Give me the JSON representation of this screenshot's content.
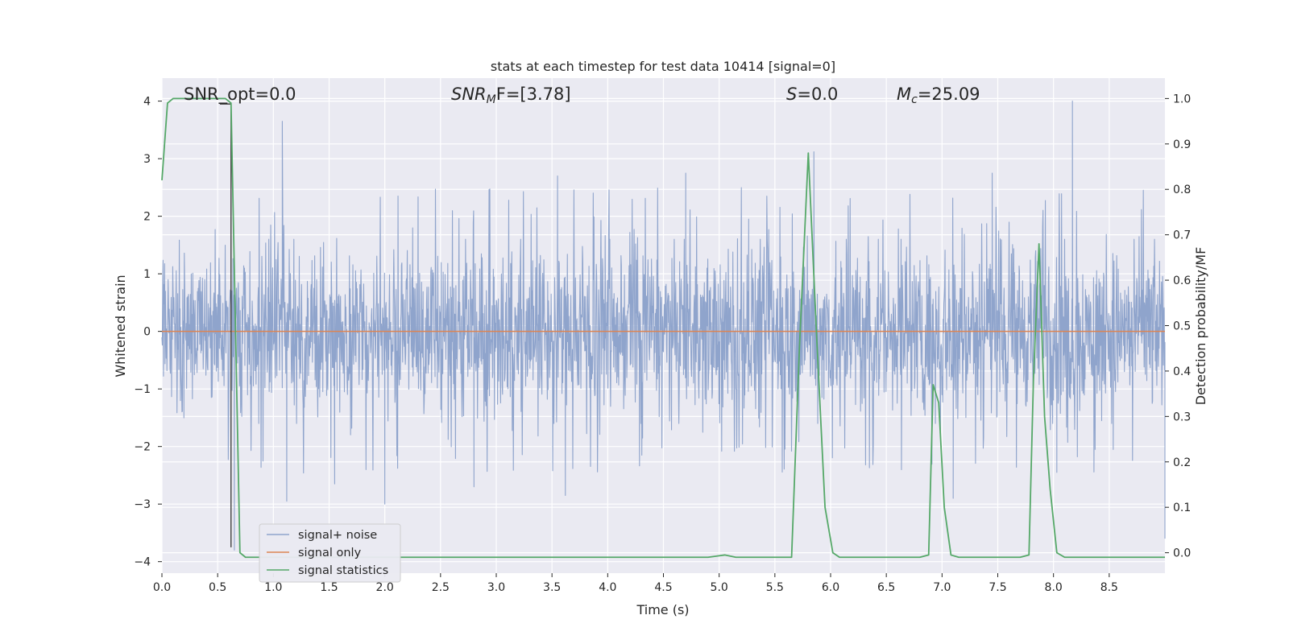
{
  "chart_data": {
    "type": "line",
    "title": "stats at each timestep for test data 10414 [signal=0]",
    "xlabel": "Time (s)",
    "ylabel_left": "Whitened strain",
    "ylabel_right": "Detection probability/MF",
    "xlim": [
      0.0,
      9.0
    ],
    "ylim_left": [
      -4.2,
      4.4
    ],
    "ylim_right": [
      -0.045,
      1.045
    ],
    "x_ticks": [
      "0.0",
      "0.5",
      "1.0",
      "1.5",
      "2.0",
      "2.5",
      "3.0",
      "3.5",
      "4.0",
      "4.5",
      "5.0",
      "5.5",
      "6.0",
      "6.5",
      "7.0",
      "7.5",
      "8.0",
      "8.5"
    ],
    "y_ticks_left": [
      "−4",
      "−3",
      "−2",
      "−1",
      "0",
      "1",
      "2",
      "3",
      "4"
    ],
    "y_ticks_right": [
      "0.0",
      "0.1",
      "0.2",
      "0.3",
      "0.4",
      "0.5",
      "0.6",
      "0.7",
      "0.8",
      "0.9",
      "1.0"
    ],
    "annotations": {
      "snr_opt": "SNR_opt=0.0",
      "snr_mf_label": "SNR",
      "snr_mf_sub": "M",
      "snr_mf_rest": "F=[3.78]",
      "s_label": "S",
      "s_rest": "=0.0",
      "mc_label": "M",
      "mc_sub": "c",
      "mc_rest": "=25.09"
    },
    "grid": true,
    "legend_position": "lower-left",
    "series": [
      {
        "name": "signal+ noise",
        "color": "#8fa4cc",
        "axis": "left",
        "kind": "noise",
        "envelope_upper": 1.6,
        "envelope_lower": -1.6,
        "spikes": [
          [
            1.08,
            3.65
          ],
          [
            8.17,
            4.0
          ],
          [
            5.85,
            3.12
          ],
          [
            3.55,
            2.7
          ],
          [
            4.7,
            2.75
          ],
          [
            7.45,
            2.75
          ],
          [
            2.0,
            -3.0
          ],
          [
            1.12,
            -2.95
          ],
          [
            3.62,
            -2.85
          ],
          [
            2.8,
            -2.7
          ],
          [
            8.03,
            -2.45
          ],
          [
            0.65,
            -3.8
          ],
          [
            9.0,
            -3.6
          ],
          [
            7.1,
            -2.9
          ],
          [
            1.55,
            -2.65
          ]
        ]
      },
      {
        "name": "signal only",
        "color": "#dd8452",
        "axis": "left",
        "x": [
          0.0,
          9.0
        ],
        "y": [
          0.0,
          0.0
        ]
      },
      {
        "name": "signal statistics",
        "color": "#55a868",
        "axis": "right",
        "x": [
          0.0,
          0.05,
          0.1,
          0.2,
          0.3,
          0.4,
          0.5,
          0.57,
          0.62,
          0.7,
          0.75,
          0.85,
          1.0,
          2.0,
          3.0,
          4.0,
          4.5,
          4.9,
          5.05,
          5.15,
          5.3,
          5.5,
          5.65,
          5.72,
          5.8,
          5.87,
          5.95,
          6.02,
          6.08,
          6.2,
          6.5,
          6.8,
          6.88,
          6.92,
          6.97,
          7.02,
          7.08,
          7.15,
          7.5,
          7.7,
          7.78,
          7.82,
          7.87,
          7.92,
          7.97,
          8.03,
          8.1,
          8.2,
          8.5,
          9.0
        ],
        "y": [
          0.82,
          0.99,
          1.0,
          1.0,
          1.0,
          1.0,
          1.0,
          1.0,
          0.99,
          0.0,
          -0.01,
          -0.01,
          -0.01,
          -0.01,
          -0.01,
          -0.01,
          -0.01,
          -0.01,
          -0.005,
          -0.01,
          -0.01,
          -0.01,
          -0.01,
          0.45,
          0.88,
          0.5,
          0.1,
          0.0,
          -0.01,
          -0.01,
          -0.01,
          -0.01,
          -0.005,
          0.37,
          0.33,
          0.1,
          -0.005,
          -0.01,
          -0.01,
          -0.01,
          -0.005,
          0.38,
          0.68,
          0.3,
          0.14,
          0.0,
          -0.01,
          -0.01,
          -0.01,
          -0.01
        ]
      }
    ],
    "black_marker": {
      "x": 0.62,
      "y_top": 3.95,
      "y_bottom": -3.75,
      "color": "#333333"
    }
  }
}
